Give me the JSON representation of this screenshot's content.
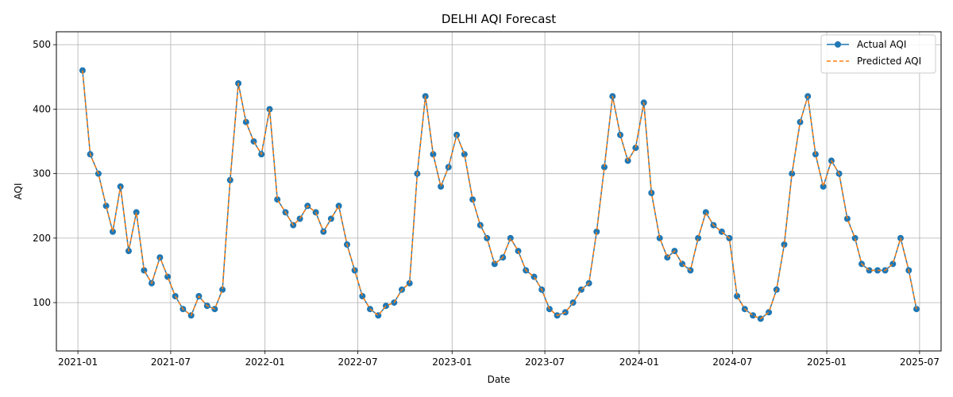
{
  "chart_data": {
    "type": "line",
    "title": "DELHI AQI Forecast",
    "xlabel": "Date",
    "ylabel": "AQI",
    "grid": true,
    "legend_position": "top-right",
    "xlim": [
      "2020-11-20",
      "2025-08-12"
    ],
    "ylim": [
      25,
      520
    ],
    "x_ticks": [
      "2021-01",
      "2021-07",
      "2022-01",
      "2022-07",
      "2023-01",
      "2023-07",
      "2024-01",
      "2024-07",
      "2025-01",
      "2025-07"
    ],
    "y_ticks": [
      100,
      200,
      300,
      400,
      500
    ],
    "x": [
      "2021-01-10",
      "2021-01-25",
      "2021-02-10",
      "2021-02-25",
      "2021-03-10",
      "2021-03-25",
      "2021-04-10",
      "2021-04-25",
      "2021-05-10",
      "2021-05-25",
      "2021-06-10",
      "2021-06-25",
      "2021-07-10",
      "2021-07-25",
      "2021-08-10",
      "2021-08-25",
      "2021-09-10",
      "2021-09-25",
      "2021-10-10",
      "2021-10-25",
      "2021-11-10",
      "2021-11-25",
      "2021-12-10",
      "2021-12-25",
      "2022-01-10",
      "2022-01-25",
      "2022-02-10",
      "2022-02-25",
      "2022-03-10",
      "2022-03-25",
      "2022-04-10",
      "2022-04-25",
      "2022-05-10",
      "2022-05-25",
      "2022-06-10",
      "2022-06-25",
      "2022-07-10",
      "2022-07-25",
      "2022-08-10",
      "2022-08-25",
      "2022-09-10",
      "2022-09-25",
      "2022-10-10",
      "2022-10-25",
      "2022-11-10",
      "2022-11-25",
      "2022-12-10",
      "2022-12-25",
      "2023-01-10",
      "2023-01-25",
      "2023-02-10",
      "2023-02-25",
      "2023-03-10",
      "2023-03-25",
      "2023-04-10",
      "2023-04-25",
      "2023-05-10",
      "2023-05-25",
      "2023-06-10",
      "2023-06-25",
      "2023-07-10",
      "2023-07-25",
      "2023-08-10",
      "2023-08-25",
      "2023-09-10",
      "2023-09-25",
      "2023-10-10",
      "2023-10-25",
      "2023-11-10",
      "2023-11-25",
      "2023-12-10",
      "2023-12-25",
      "2024-01-10",
      "2024-01-25",
      "2024-02-10",
      "2024-02-25",
      "2024-03-10",
      "2024-03-25",
      "2024-04-10",
      "2024-04-25",
      "2024-05-10",
      "2024-05-25",
      "2024-06-10",
      "2024-06-25",
      "2024-07-10",
      "2024-07-25",
      "2024-08-10",
      "2024-08-25",
      "2024-09-10",
      "2024-09-25",
      "2024-10-10",
      "2024-10-25",
      "2024-11-10",
      "2024-11-25",
      "2024-12-10",
      "2024-12-25",
      "2025-01-10",
      "2025-01-25",
      "2025-02-10",
      "2025-02-25",
      "2025-03-10",
      "2025-03-25",
      "2025-04-10",
      "2025-04-25",
      "2025-05-10",
      "2025-05-25",
      "2025-06-10",
      "2025-06-25"
    ],
    "series": [
      {
        "name": "Actual AQI",
        "color": "#1f77b4",
        "values": [
          460,
          330,
          300,
          250,
          210,
          280,
          180,
          240,
          150,
          130,
          170,
          140,
          110,
          90,
          80,
          110,
          95,
          90,
          120,
          290,
          440,
          380,
          350,
          330,
          400,
          260,
          240,
          220,
          230,
          250,
          240,
          210,
          230,
          250,
          190,
          150,
          110,
          90,
          80,
          95,
          100,
          120,
          130,
          300,
          420,
          330,
          280,
          310,
          360,
          330,
          260,
          220,
          200,
          160,
          170,
          200,
          180,
          150,
          140,
          120,
          90,
          80,
          85,
          100,
          120,
          130,
          210,
          310,
          420,
          360,
          320,
          340,
          410,
          270,
          200,
          170,
          180,
          160,
          150,
          200,
          240,
          220,
          210,
          200,
          110,
          90,
          80,
          75,
          85,
          120,
          190,
          300,
          380,
          420,
          330,
          280,
          320,
          300,
          230,
          200,
          160,
          150,
          150,
          150,
          160,
          200,
          150,
          90
        ]
      },
      {
        "name": "Predicted AQI",
        "color": "#ff7f0e",
        "values": [
          460,
          330,
          300,
          250,
          210,
          280,
          180,
          240,
          150,
          130,
          170,
          140,
          110,
          90,
          80,
          110,
          95,
          90,
          120,
          290,
          440,
          380,
          350,
          330,
          400,
          260,
          240,
          220,
          230,
          250,
          240,
          210,
          230,
          250,
          190,
          150,
          110,
          90,
          80,
          95,
          100,
          120,
          130,
          300,
          420,
          330,
          280,
          310,
          360,
          330,
          260,
          220,
          200,
          160,
          170,
          200,
          180,
          150,
          140,
          120,
          90,
          80,
          85,
          100,
          120,
          130,
          210,
          310,
          420,
          360,
          320,
          340,
          410,
          270,
          200,
          170,
          180,
          160,
          150,
          200,
          240,
          220,
          210,
          200,
          110,
          90,
          80,
          75,
          85,
          120,
          190,
          300,
          380,
          420,
          330,
          280,
          320,
          300,
          230,
          200,
          160,
          150,
          150,
          150,
          160,
          200,
          150,
          90
        ]
      }
    ]
  }
}
